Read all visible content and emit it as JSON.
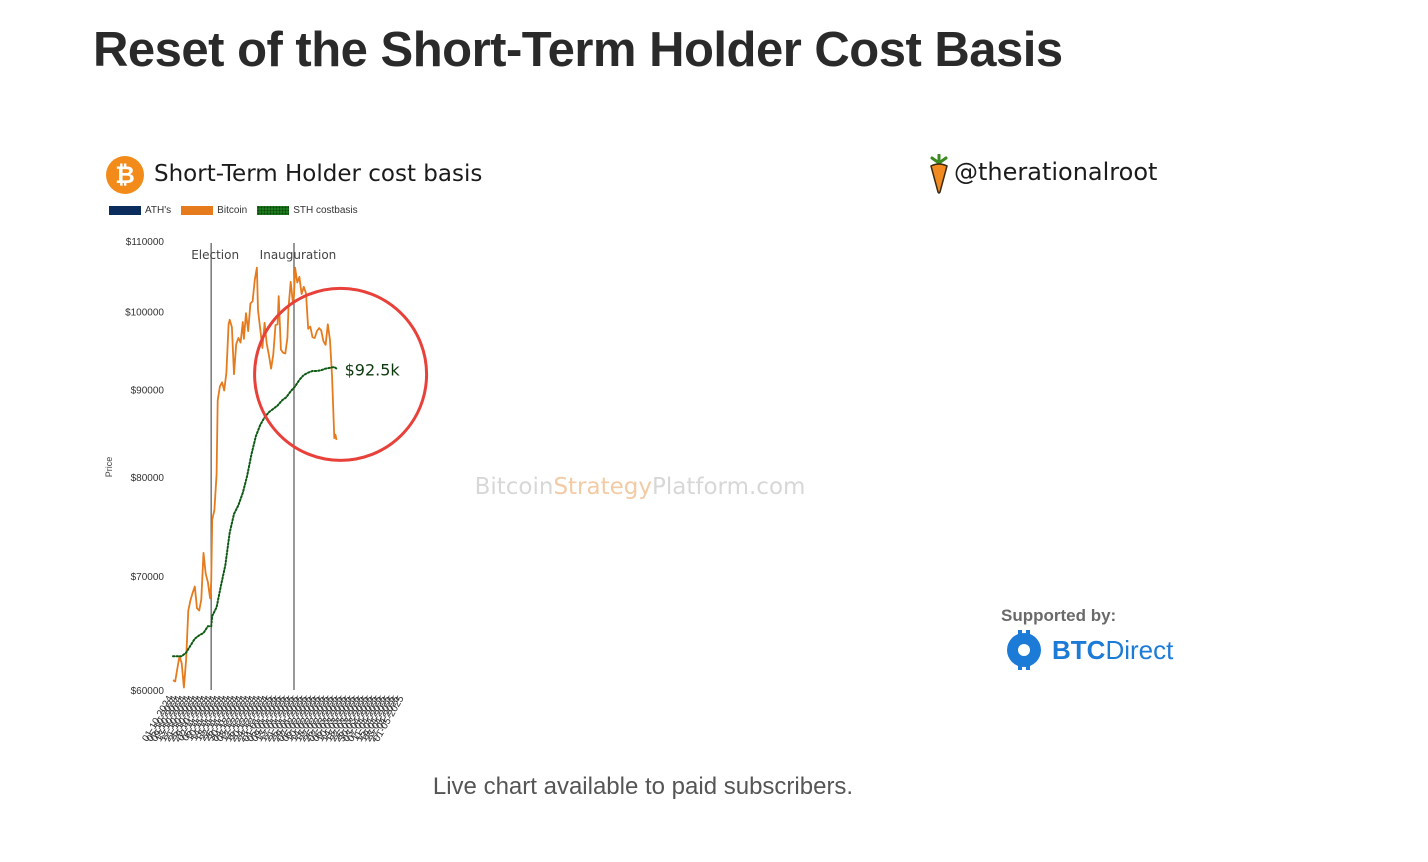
{
  "page_title": "Reset of the Short-Term Holder Cost Basis",
  "caption": "Live chart available to paid subscribers.",
  "header": {
    "logo_symbol": "₿",
    "chart_title": "Short-Term Holder cost basis",
    "handle": "@therationalroot",
    "handle_icon": "carrot-icon"
  },
  "sponsor": {
    "supported_label": "Supported by:",
    "name_bold": "BTC",
    "name_light": "Direct"
  },
  "colors": {
    "bitcoin": "#e57b1d",
    "sth": "#0c5a14",
    "ath": "#0b2d5e",
    "circle": "#e8413a",
    "brand_blue": "#1d7bd8",
    "logo_orange": "#f28b1a"
  },
  "chart_data": {
    "type": "line",
    "legend": [
      {
        "name": "ATH's",
        "color": "#0b2d5e",
        "style": "solid"
      },
      {
        "name": "Bitcoin",
        "color": "#e57b1d",
        "style": "solid"
      },
      {
        "name": "STH costbasis",
        "color": "#0c5a14",
        "style": "dotted"
      }
    ],
    "ylabel": "Price",
    "y_scale": "log",
    "ylim": [
      60000,
      110000
    ],
    "y_ticks": [
      {
        "value": 60000,
        "label": "$60000"
      },
      {
        "value": 70000,
        "label": "$70000"
      },
      {
        "value": 80000,
        "label": "$80000"
      },
      {
        "value": 90000,
        "label": "$90000"
      },
      {
        "value": 100000,
        "label": "$100000"
      },
      {
        "value": 110000,
        "label": "$110000"
      }
    ],
    "x_tick_labels": [
      "01-10-2024",
      "05-10-2024",
      "09-10-2024",
      "13-10-2024",
      "17-10-2024",
      "21-10-2024",
      "25-10-2024",
      "29-10-2024",
      "02-11-2024",
      "06-11-2024",
      "10-11-2024",
      "14-11-2024",
      "18-11-2024",
      "22-11-2024",
      "26-11-2024",
      "30-11-2024",
      "04-12-2024",
      "08-12-2024",
      "12-12-2024",
      "16-12-2024",
      "20-12-2024",
      "24-12-2024",
      "28-12-2024",
      "01-01-2025",
      "05-01-2025",
      "09-01-2025",
      "13-01-2025",
      "17-01-2025",
      "21-01-2025",
      "25-01-2025",
      "29-01-2025",
      "02-02-2025",
      "06-02-2025",
      "10-02-2025",
      "14-02-2025",
      "18-02-2025",
      "22-02-2025",
      "26-02-2025",
      "02-03-2025",
      "06-03-2025",
      "10-03-2025",
      "14-03-2025",
      "18-03-2025",
      "22-03-2025",
      "26-03-2025",
      "30-03-2025",
      "03-04-2025",
      "07-04-2025",
      "11-04-2025",
      "15-04-2025",
      "19-04-2025",
      "23-04-2025",
      "27-04-2025",
      "01-05-2025"
    ],
    "events": [
      {
        "label": "Election",
        "date": "05-11-2024"
      },
      {
        "label": "Inauguration",
        "date": "20-01-2025"
      }
    ],
    "annotation": {
      "label": "$92.5k",
      "series": "STH costbasis",
      "date": "01-03-2025"
    },
    "watermark": {
      "part1": "Bitcoin",
      "part2": "Strategy",
      "part3": "Platform.com"
    },
    "series": [
      {
        "name": "Bitcoin",
        "points": [
          [
            "01-10-2024",
            60800
          ],
          [
            "03-10-2024",
            60700
          ],
          [
            "05-10-2024",
            61800
          ],
          [
            "07-10-2024",
            62800
          ],
          [
            "09-10-2024",
            62200
          ],
          [
            "11-10-2024",
            60200
          ],
          [
            "13-10-2024",
            62500
          ],
          [
            "15-10-2024",
            66800
          ],
          [
            "17-10-2024",
            67700
          ],
          [
            "19-10-2024",
            68400
          ],
          [
            "21-10-2024",
            69000
          ],
          [
            "23-10-2024",
            67000
          ],
          [
            "25-10-2024",
            66800
          ],
          [
            "27-10-2024",
            67800
          ],
          [
            "29-10-2024",
            72200
          ],
          [
            "31-10-2024",
            70200
          ],
          [
            "02-11-2024",
            69400
          ],
          [
            "04-11-2024",
            67900
          ],
          [
            "05-11-2024",
            69400
          ],
          [
            "06-11-2024",
            75500
          ],
          [
            "08-11-2024",
            76500
          ],
          [
            "10-11-2024",
            80300
          ],
          [
            "11-11-2024",
            88700
          ],
          [
            "13-11-2024",
            90400
          ],
          [
            "15-11-2024",
            90900
          ],
          [
            "17-11-2024",
            89900
          ],
          [
            "19-11-2024",
            92100
          ],
          [
            "21-11-2024",
            98300
          ],
          [
            "22-11-2024",
            98900
          ],
          [
            "24-11-2024",
            97900
          ],
          [
            "26-11-2024",
            91900
          ],
          [
            "28-11-2024",
            95700
          ],
          [
            "30-11-2024",
            96500
          ],
          [
            "02-12-2024",
            95900
          ],
          [
            "04-12-2024",
            98600
          ],
          [
            "05-12-2024",
            96400
          ],
          [
            "07-12-2024",
            99800
          ],
          [
            "09-12-2024",
            97400
          ],
          [
            "11-12-2024",
            101100
          ],
          [
            "13-12-2024",
            101400
          ],
          [
            "15-12-2024",
            104400
          ],
          [
            "17-12-2024",
            106100
          ],
          [
            "18-12-2024",
            100200
          ],
          [
            "20-12-2024",
            97700
          ],
          [
            "22-12-2024",
            95200
          ],
          [
            "24-12-2024",
            98500
          ],
          [
            "26-12-2024",
            95800
          ],
          [
            "28-12-2024",
            94300
          ],
          [
            "30-12-2024",
            92600
          ],
          [
            "01-01-2025",
            94400
          ],
          [
            "03-01-2025",
            98200
          ],
          [
            "05-01-2025",
            98300
          ],
          [
            "06-01-2025",
            102100
          ],
          [
            "08-01-2025",
            95000
          ],
          [
            "10-01-2025",
            94600
          ],
          [
            "12-01-2025",
            94500
          ],
          [
            "14-01-2025",
            96500
          ],
          [
            "15-01-2025",
            100500
          ],
          [
            "17-01-2025",
            104100
          ],
          [
            "19-01-2025",
            101200
          ],
          [
            "20-01-2025",
            102200
          ],
          [
            "21-01-2025",
            106100
          ],
          [
            "23-01-2025",
            104000
          ],
          [
            "25-01-2025",
            104800
          ],
          [
            "27-01-2025",
            102400
          ],
          [
            "29-01-2025",
            103400
          ],
          [
            "31-01-2025",
            102500
          ],
          [
            "02-02-2025",
            97700
          ],
          [
            "04-02-2025",
            98000
          ],
          [
            "06-02-2025",
            96600
          ],
          [
            "08-02-2025",
            96500
          ],
          [
            "10-02-2025",
            97400
          ],
          [
            "12-02-2025",
            97800
          ],
          [
            "14-02-2025",
            97500
          ],
          [
            "16-02-2025",
            96100
          ],
          [
            "18-02-2025",
            95600
          ],
          [
            "20-02-2025",
            98300
          ],
          [
            "22-02-2025",
            96200
          ],
          [
            "24-02-2025",
            91500
          ],
          [
            "26-02-2025",
            84300
          ],
          [
            "27-02-2025",
            84700
          ],
          [
            "28-02-2025",
            84100
          ]
        ]
      },
      {
        "name": "STH costbasis",
        "points": [
          [
            "01-10-2024",
            62800
          ],
          [
            "09-10-2024",
            62800
          ],
          [
            "13-10-2024",
            63100
          ],
          [
            "17-10-2024",
            63700
          ],
          [
            "21-10-2024",
            64300
          ],
          [
            "25-10-2024",
            64600
          ],
          [
            "29-10-2024",
            64800
          ],
          [
            "02-11-2024",
            65400
          ],
          [
            "05-11-2024",
            65400
          ],
          [
            "06-11-2024",
            66300
          ],
          [
            "10-11-2024",
            67100
          ],
          [
            "14-11-2024",
            69100
          ],
          [
            "18-11-2024",
            71000
          ],
          [
            "22-11-2024",
            74200
          ],
          [
            "26-11-2024",
            76100
          ],
          [
            "30-11-2024",
            77000
          ],
          [
            "04-12-2024",
            78300
          ],
          [
            "08-12-2024",
            80100
          ],
          [
            "12-12-2024",
            82500
          ],
          [
            "16-12-2024",
            84500
          ],
          [
            "20-12-2024",
            85800
          ],
          [
            "24-12-2024",
            86700
          ],
          [
            "28-12-2024",
            87300
          ],
          [
            "01-01-2025",
            87700
          ],
          [
            "05-01-2025",
            88100
          ],
          [
            "09-01-2025",
            88700
          ],
          [
            "13-01-2025",
            89100
          ],
          [
            "17-01-2025",
            89800
          ],
          [
            "21-01-2025",
            90400
          ],
          [
            "25-01-2025",
            91200
          ],
          [
            "29-01-2025",
            91800
          ],
          [
            "02-02-2025",
            92100
          ],
          [
            "06-02-2025",
            92300
          ],
          [
            "10-02-2025",
            92300
          ],
          [
            "14-02-2025",
            92400
          ],
          [
            "18-02-2025",
            92600
          ],
          [
            "22-02-2025",
            92700
          ],
          [
            "26-02-2025",
            92800
          ],
          [
            "28-02-2025",
            92600
          ],
          [
            "01-03-2025",
            92500
          ]
        ]
      }
    ]
  }
}
